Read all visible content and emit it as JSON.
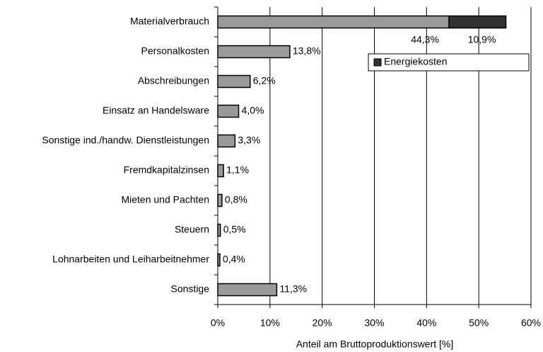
{
  "chart_data": {
    "type": "stacked_bar_horizontal",
    "x_label": "Anteil am Bruttoproduktionswert [%]",
    "categories": [
      "Materialverbrauch",
      "Personalkosten",
      "Abschreibungen",
      "Einsatz an Handelsware",
      "Sonstige ind./handw. Dienstleistungen",
      "Fremdkapitalzinsen",
      "Mieten und Pachten",
      "Steuern",
      "Lohnarbeiten und Leiharbeitnehmer",
      "Sonstige"
    ],
    "series": [
      {
        "color": "#999999",
        "values": [
          44.3,
          13.8,
          6.2,
          4.0,
          3.3,
          1.1,
          0.8,
          0.5,
          0.4,
          11.3
        ],
        "value_labels": [
          "44,3%",
          "13,8%",
          "6,2%",
          "4,0%",
          "3,3%",
          "1,1%",
          "0,8%",
          "0,5%",
          "0,4%",
          "11,3%"
        ]
      },
      {
        "name": "Energiekosten",
        "color": "#333333",
        "values": [
          10.9,
          null,
          null,
          null,
          null,
          null,
          null,
          null,
          null,
          null
        ],
        "value_labels": [
          "10,9%",
          null,
          null,
          null,
          null,
          null,
          null,
          null,
          null,
          null
        ]
      }
    ],
    "xlim": [
      0,
      60
    ],
    "xticks": [
      {
        "value": 0,
        "label": "0%"
      },
      {
        "value": 10,
        "label": "10%"
      },
      {
        "value": 20,
        "label": "20%"
      },
      {
        "value": 30,
        "label": "30%"
      },
      {
        "value": 40,
        "label": "40%"
      },
      {
        "value": 50,
        "label": "50%"
      },
      {
        "value": 60,
        "label": "60%"
      }
    ],
    "grid": true,
    "legend": "upper right"
  }
}
